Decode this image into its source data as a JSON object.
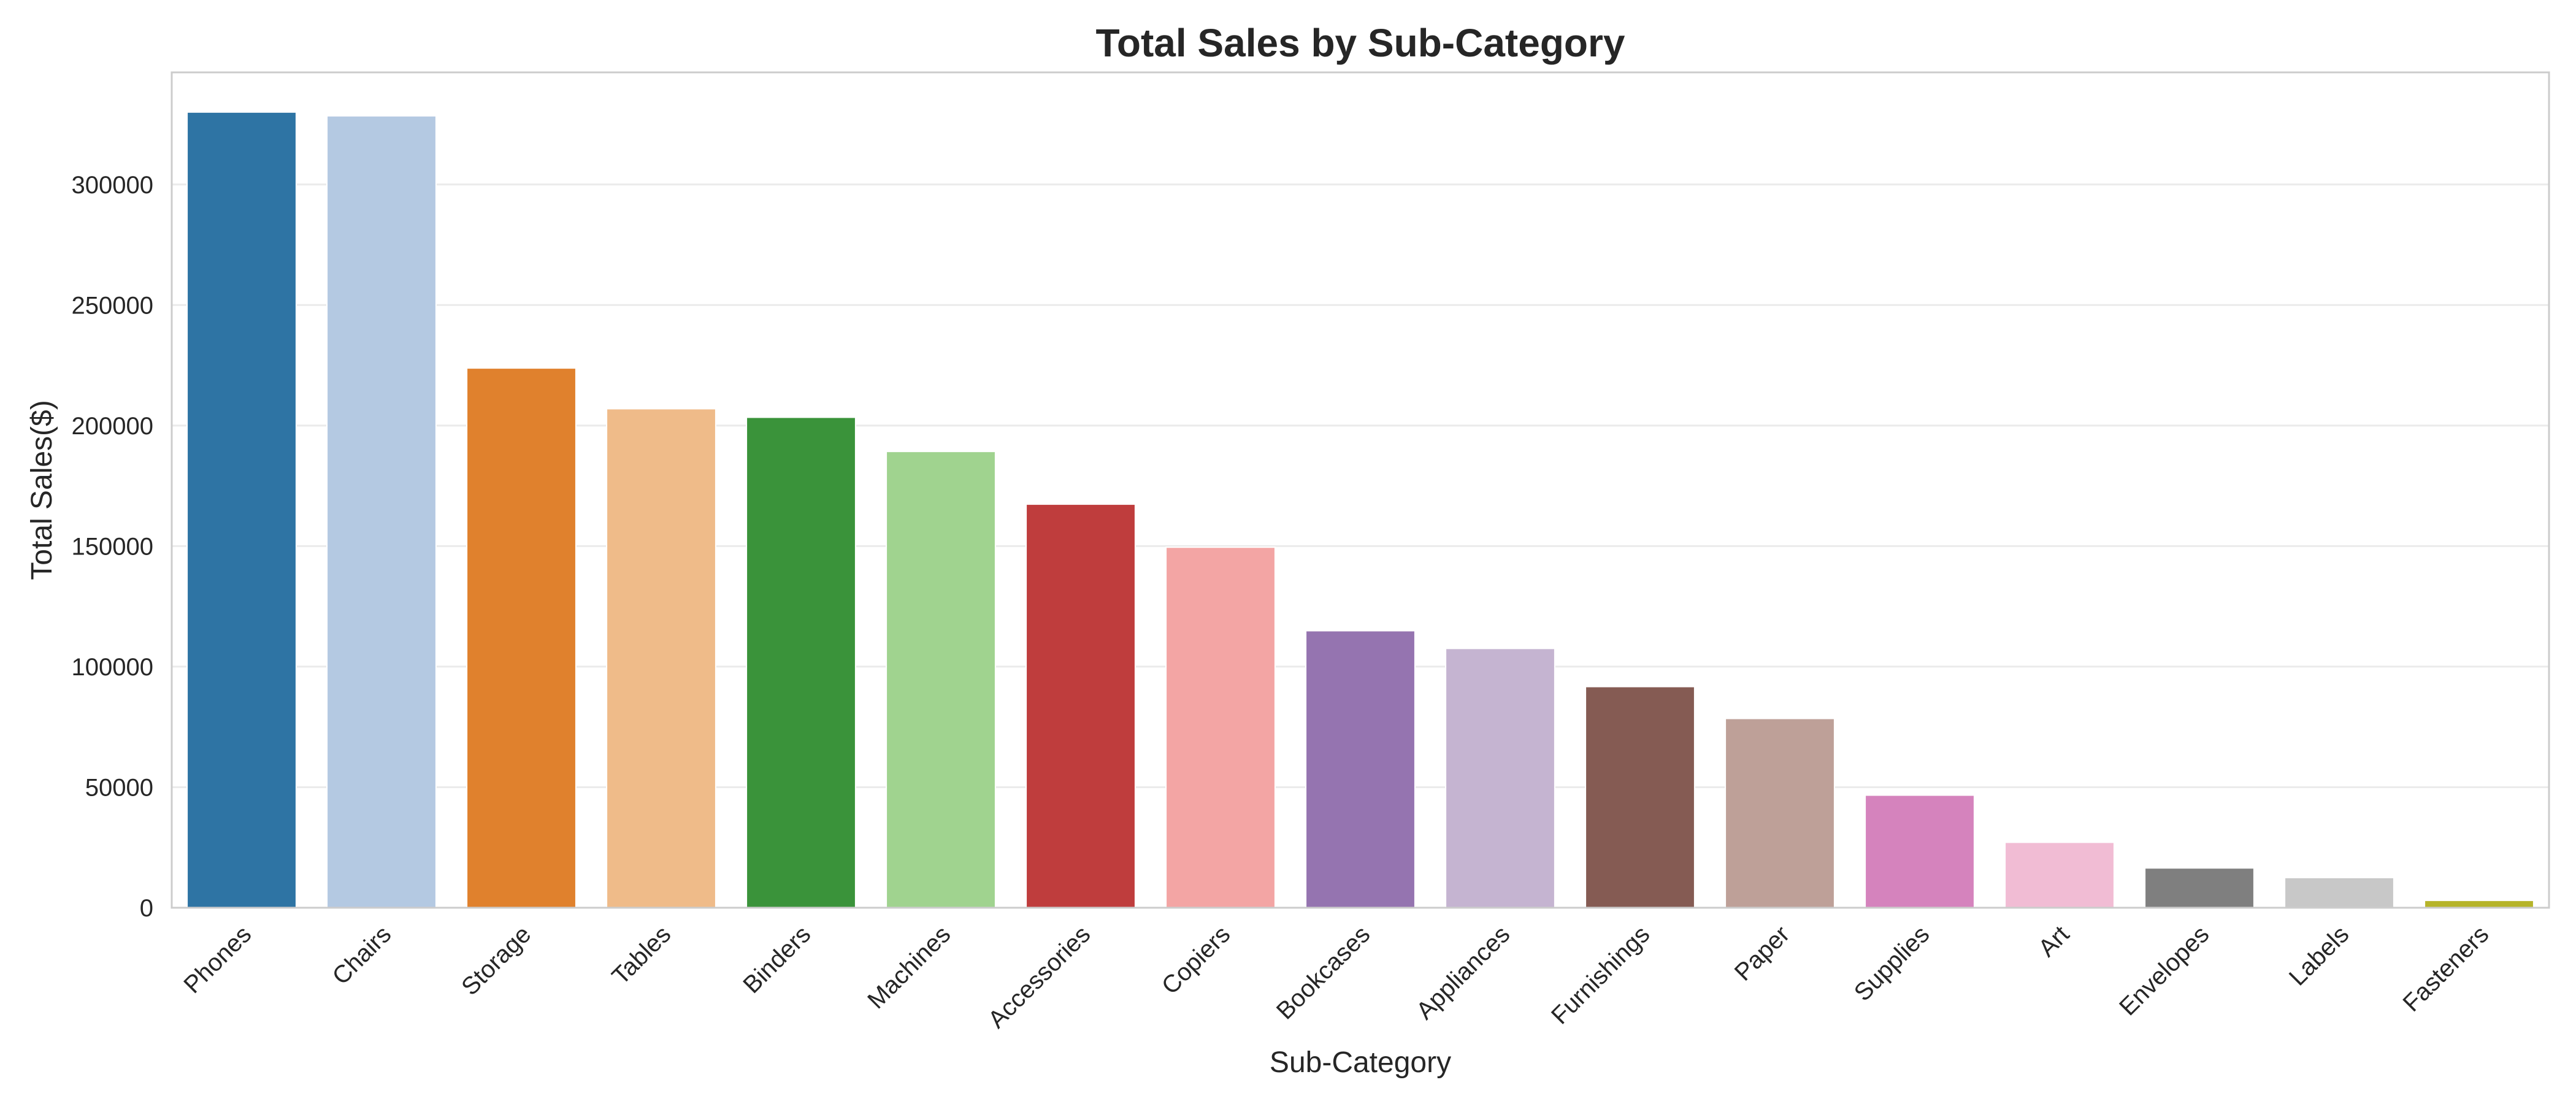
{
  "chart_data": {
    "type": "bar",
    "title": "Total Sales by Sub-Category",
    "xlabel": "Sub-Category",
    "ylabel": "Total Sales($)",
    "categories": [
      "Phones",
      "Chairs",
      "Storage",
      "Tables",
      "Binders",
      "Machines",
      "Accessories",
      "Copiers",
      "Bookcases",
      "Appliances",
      "Furnishings",
      "Paper",
      "Supplies",
      "Art",
      "Envelopes",
      "Labels",
      "Fasteners"
    ],
    "values": [
      330007,
      328449,
      223844,
      206966,
      203413,
      189239,
      167380,
      149528,
      114880,
      107532,
      91705,
      78479,
      46674,
      27119,
      16476,
      12486,
      3024
    ],
    "colors": [
      "#2e74a4",
      "#b4c9e2",
      "#e0812d",
      "#efbb89",
      "#3a933a",
      "#a0d38f",
      "#bf3d3d",
      "#f3a5a4",
      "#9574b0",
      "#c5b4d1",
      "#855b53",
      "#bea098",
      "#d583bd",
      "#f1bcd4",
      "#7f7f7f",
      "#c8c8c8",
      "#b6b42a"
    ],
    "yticks": [
      0,
      50000,
      100000,
      150000,
      200000,
      250000,
      300000
    ],
    "ylim": [
      0,
      346500
    ],
    "grid": true,
    "legend": "none"
  }
}
